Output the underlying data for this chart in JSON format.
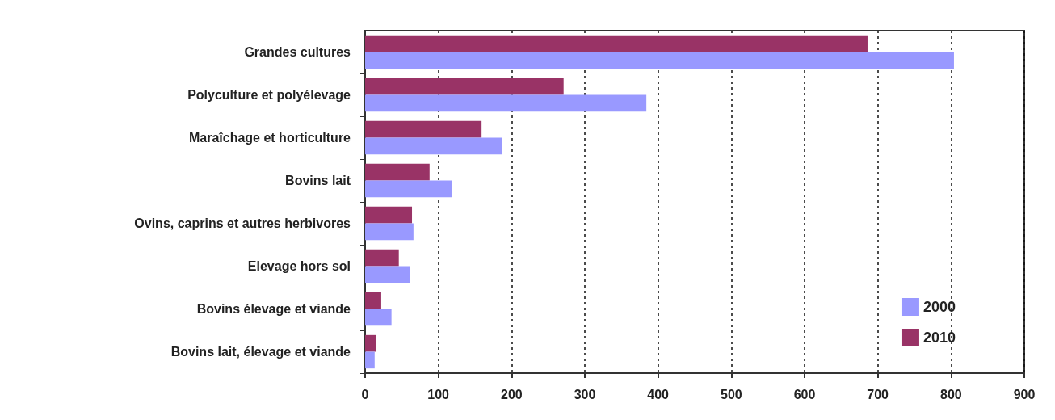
{
  "chart_data": {
    "type": "bar",
    "orientation": "horizontal",
    "categories": [
      "Grandes cultures",
      "Polyculture et polyélevage",
      "Maraîchage et horticulture",
      "Bovins lait",
      "Ovins, caprins et autres herbivores",
      "Elevage hors sol",
      "Bovins élevage et viande",
      "Bovins lait, élevage et viande"
    ],
    "series": [
      {
        "name": "2000",
        "color": "#9999ff",
        "values": [
          804,
          384,
          187,
          118,
          66,
          61,
          36,
          13
        ]
      },
      {
        "name": "2010",
        "color": "#993366",
        "values": [
          686,
          271,
          159,
          88,
          64,
          46,
          22,
          15
        ]
      }
    ],
    "xlim": [
      0,
      900
    ],
    "xticks": [
      0,
      100,
      200,
      300,
      400,
      500,
      600,
      700,
      800,
      900
    ],
    "grid": "x",
    "legend": "bottom right"
  }
}
